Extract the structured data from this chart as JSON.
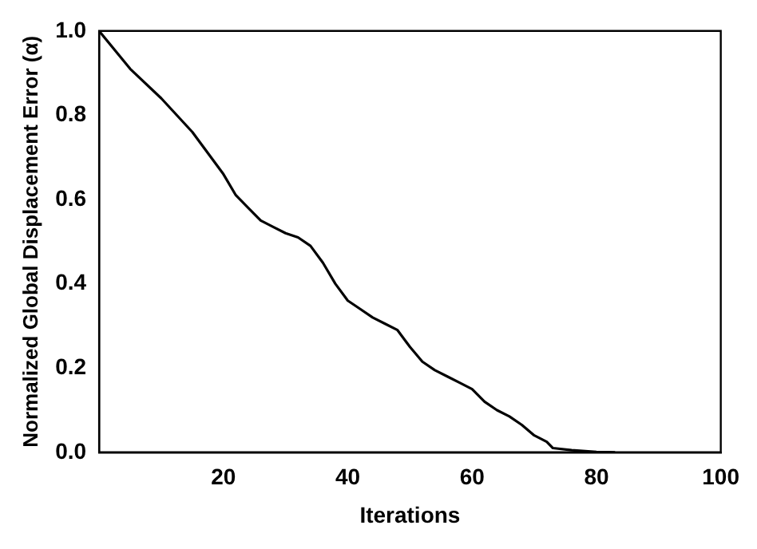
{
  "chart_data": {
    "type": "line",
    "xlabel": "Iterations",
    "ylabel": "Normalized Global Displacement Error (α)",
    "x": [
      0,
      5,
      10,
      15,
      20,
      22,
      24,
      26,
      28,
      30,
      32,
      34,
      36,
      38,
      40,
      42,
      44,
      46,
      48,
      50,
      52,
      54,
      56,
      58,
      60,
      62,
      64,
      66,
      68,
      70,
      72,
      73,
      76,
      80,
      83
    ],
    "series": [
      {
        "color": "#000000",
        "values": [
          1.0,
          0.91,
          0.84,
          0.76,
          0.66,
          0.61,
          0.58,
          0.55,
          0.535,
          0.52,
          0.51,
          0.49,
          0.45,
          0.4,
          0.36,
          0.34,
          0.32,
          0.305,
          0.29,
          0.25,
          0.215,
          0.195,
          0.18,
          0.165,
          0.15,
          0.12,
          0.1,
          0.085,
          0.065,
          0.04,
          0.025,
          0.01,
          0.005,
          0.001,
          0
        ]
      }
    ],
    "xlim": [
      0,
      100
    ],
    "xticks": [
      20,
      40,
      60,
      80,
      100
    ],
    "ylim": [
      0,
      1
    ],
    "yticks": [
      {
        "value": 0,
        "label": "0.0"
      },
      {
        "value": 0.2,
        "label": "0.2"
      },
      {
        "value": 0.4,
        "label": "0.4"
      },
      {
        "value": 0.6,
        "label": "0.6"
      },
      {
        "value": 0.8,
        "label": "0.8"
      },
      {
        "value": 1,
        "label": "1.0"
      }
    ],
    "grid": false,
    "legend": false,
    "marker": "none",
    "line_style": "solid"
  }
}
